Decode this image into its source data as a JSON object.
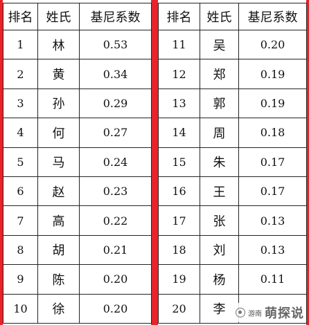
{
  "headers": {
    "rank": "排名",
    "surname": "姓氏",
    "gini": "基尼系数"
  },
  "left_rows": [
    {
      "rank": "1",
      "surname": "林",
      "gini": "0.53"
    },
    {
      "rank": "2",
      "surname": "黄",
      "gini": "0.34"
    },
    {
      "rank": "3",
      "surname": "孙",
      "gini": "0.29"
    },
    {
      "rank": "4",
      "surname": "何",
      "gini": "0.27"
    },
    {
      "rank": "5",
      "surname": "马",
      "gini": "0.24"
    },
    {
      "rank": "6",
      "surname": "赵",
      "gini": "0.23"
    },
    {
      "rank": "7",
      "surname": "高",
      "gini": "0.22"
    },
    {
      "rank": "8",
      "surname": "胡",
      "gini": "0.21"
    },
    {
      "rank": "9",
      "surname": "陈",
      "gini": "0.20"
    },
    {
      "rank": "10",
      "surname": "徐",
      "gini": "0.20"
    }
  ],
  "right_rows": [
    {
      "rank": "11",
      "surname": "吴",
      "gini": "0.20"
    },
    {
      "rank": "12",
      "surname": "郑",
      "gini": "0.19"
    },
    {
      "rank": "13",
      "surname": "郭",
      "gini": "0.19"
    },
    {
      "rank": "14",
      "surname": "周",
      "gini": "0.18"
    },
    {
      "rank": "15",
      "surname": "朱",
      "gini": "0.17"
    },
    {
      "rank": "16",
      "surname": "王",
      "gini": "0.17"
    },
    {
      "rank": "17",
      "surname": "张",
      "gini": "0.13"
    },
    {
      "rank": "18",
      "surname": "刘",
      "gini": "0.13"
    },
    {
      "rank": "19",
      "surname": "杨",
      "gini": "0.11"
    },
    {
      "rank": "20",
      "surname": "李",
      "gini": ""
    }
  ],
  "watermark": {
    "small": "游南",
    "big": "萌探说",
    "icon": "wechat-icon"
  },
  "colors": {
    "border_accent": "#e8232a"
  }
}
